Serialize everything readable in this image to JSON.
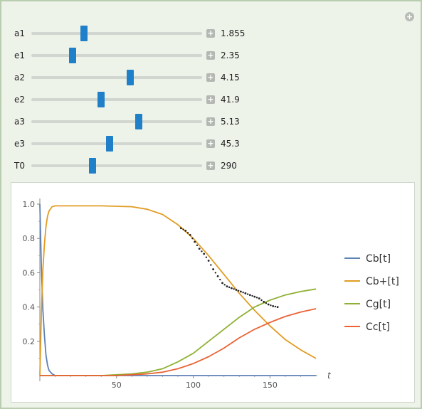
{
  "sliders": [
    {
      "label": "a1",
      "value": "1.855",
      "fraction": 0.31
    },
    {
      "label": "e1",
      "value": "2.35",
      "fraction": 0.24
    },
    {
      "label": "a2",
      "value": "4.15",
      "fraction": 0.58
    },
    {
      "label": "e2",
      "value": "41.9",
      "fraction": 0.41
    },
    {
      "label": "a3",
      "value": "5.13",
      "fraction": 0.63
    },
    {
      "label": "e3",
      "value": "45.3",
      "fraction": 0.46
    },
    {
      "label": "T0",
      "value": "290",
      "fraction": 0.36
    }
  ],
  "colors": {
    "Cb": "#5e81b5",
    "Cbplus": "#e19c24",
    "Cg": "#8fb032",
    "Cc": "#eb6235",
    "data": "#222222",
    "thumb": "#1f7fc9"
  },
  "chart_data": {
    "type": "line",
    "xlabel": "t",
    "ylabel": "",
    "xlim": [
      0,
      180
    ],
    "ylim": [
      0,
      1.05
    ],
    "x_ticks": [
      "50",
      "100",
      "150"
    ],
    "x_tick_values": [
      50,
      100,
      150
    ],
    "y_ticks": [
      "0.2",
      "0.4",
      "0.6",
      "0.8",
      "1.0"
    ],
    "y_tick_values": [
      0.2,
      0.4,
      0.6,
      0.8,
      1.0
    ],
    "legend_position": "right",
    "series": [
      {
        "name": "Cb[t]",
        "color_key": "Cb",
        "x": [
          0,
          1,
          2,
          3,
          4,
          5,
          6,
          8,
          10,
          15,
          30,
          60,
          100,
          140,
          180
        ],
        "y": [
          1.0,
          0.62,
          0.38,
          0.23,
          0.12,
          0.06,
          0.03,
          0.01,
          0.0,
          0.0,
          0.0,
          0.0,
          0.0,
          0.0,
          0.0
        ]
      },
      {
        "name": "Cb+[t]",
        "color_key": "Cbplus",
        "x": [
          0,
          1,
          2,
          3,
          4,
          5,
          6,
          8,
          10,
          20,
          40,
          60,
          70,
          80,
          90,
          100,
          110,
          120,
          130,
          140,
          150,
          160,
          170,
          180
        ],
        "y": [
          0.0,
          0.38,
          0.62,
          0.77,
          0.87,
          0.93,
          0.96,
          0.985,
          0.99,
          0.99,
          0.99,
          0.985,
          0.97,
          0.94,
          0.88,
          0.8,
          0.7,
          0.59,
          0.48,
          0.38,
          0.29,
          0.21,
          0.15,
          0.1
        ]
      },
      {
        "name": "Cg[t]",
        "color_key": "Cg",
        "x": [
          0,
          40,
          60,
          70,
          80,
          90,
          100,
          110,
          120,
          130,
          140,
          150,
          160,
          170,
          180
        ],
        "y": [
          0.0,
          0.0,
          0.01,
          0.02,
          0.04,
          0.08,
          0.13,
          0.2,
          0.27,
          0.34,
          0.4,
          0.44,
          0.47,
          0.49,
          0.505
        ]
      },
      {
        "name": "Cc[t]",
        "color_key": "Cc",
        "x": [
          0,
          50,
          60,
          70,
          80,
          90,
          100,
          110,
          120,
          130,
          140,
          150,
          160,
          170,
          180
        ],
        "y": [
          0.0,
          0.0,
          0.005,
          0.01,
          0.02,
          0.04,
          0.07,
          0.11,
          0.16,
          0.22,
          0.27,
          0.31,
          0.345,
          0.37,
          0.39
        ]
      }
    ],
    "data_points": {
      "x": [
        92,
        95,
        98,
        101,
        104,
        107,
        110,
        113,
        116,
        119,
        122,
        125,
        128,
        131,
        134,
        137,
        140,
        143,
        146,
        149,
        152,
        155
      ],
      "y": [
        0.86,
        0.845,
        0.82,
        0.78,
        0.74,
        0.71,
        0.67,
        0.62,
        0.58,
        0.54,
        0.52,
        0.51,
        0.5,
        0.49,
        0.48,
        0.47,
        0.46,
        0.45,
        0.43,
        0.415,
        0.405,
        0.4
      ]
    }
  }
}
